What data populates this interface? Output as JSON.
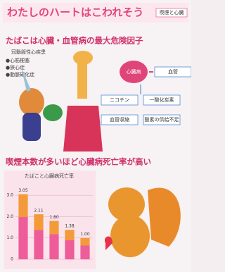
{
  "header": {
    "title": "わたしのハートはこわれそう",
    "badge": "喫煙と心臓"
  },
  "section1": {
    "title": "たばこは心臓・血管病の最大危険因子",
    "subtitle": "冠動脈性心疾患",
    "items": [
      "●心筋梗塞",
      "●狭心症",
      "●動脈硬化症"
    ]
  },
  "diagram": {
    "nodes": [
      "心臓病",
      "血管",
      "ニコチン",
      "一酸化炭素",
      "血管収縮",
      "酸素の供給不足"
    ]
  },
  "section2": {
    "title": "喫煙本数が多いほど心臓病死亡率が高い"
  },
  "chart_data": {
    "type": "bar",
    "title": "たばこと心臓病死亡率",
    "categories": [
      null,
      null,
      null,
      null,
      null
    ],
    "values": [
      3.05,
      2.11,
      1.8,
      1.38,
      1
    ],
    "value_labels": [
      "3.05",
      "2.11",
      "1.80",
      "1.38",
      "1.00"
    ],
    "ylim": [
      0,
      3.5
    ],
    "yticks": [
      0,
      {
        "value": 1,
        "label": "1.0"
      },
      {
        "value": 2,
        "label": "2.0"
      },
      {
        "value": 3,
        "label": "3.0"
      }
    ],
    "grid": true
  }
}
